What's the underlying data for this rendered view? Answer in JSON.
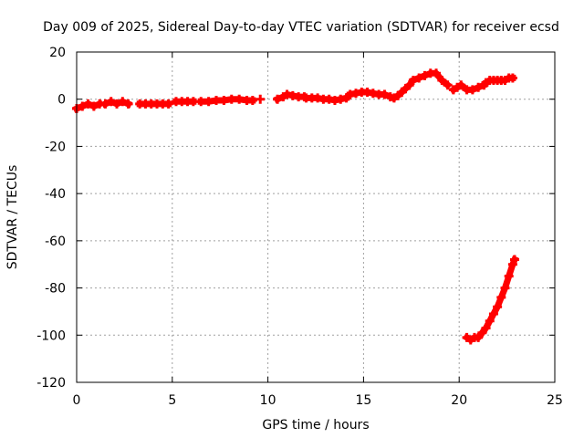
{
  "chart_data": {
    "type": "scatter",
    "title": "Day 009 of 2025, Sidereal Day-to-day VTEC variation (SDTVAR) for receiver ecsd",
    "xlabel": "GPS time / hours",
    "ylabel": "SDTVAR / TECUs",
    "xlim": [
      0,
      25
    ],
    "ylim": [
      -120,
      20
    ],
    "xticks": [
      0,
      5,
      10,
      15,
      20,
      25
    ],
    "yticks": [
      -120,
      -100,
      -80,
      -60,
      -40,
      -20,
      0,
      20
    ],
    "grid": true,
    "legend": "none",
    "marker_color": "#ff0000",
    "series": [
      {
        "name": "main",
        "segments": [
          {
            "x": [
              0.0,
              0.3,
              0.6,
              0.9,
              1.2
            ],
            "y": [
              -4,
              -3,
              -2,
              -3,
              -2
            ]
          },
          {
            "x": [
              1.5,
              1.8,
              2.1,
              2.4,
              2.7
            ],
            "y": [
              -2,
              -1,
              -2,
              -1,
              -2
            ]
          },
          {
            "x": [
              3.3,
              3.6,
              3.9
            ],
            "y": [
              -2,
              -2,
              -2
            ]
          },
          {
            "x": [
              4.2,
              4.5,
              4.8
            ],
            "y": [
              -2,
              -2,
              -2
            ]
          },
          {
            "x": [
              5.2,
              5.5,
              5.8,
              6.1
            ],
            "y": [
              -1,
              -1,
              -1,
              -1
            ]
          },
          {
            "x": [
              6.5,
              6.9,
              7.3,
              7.7,
              8.1,
              8.5,
              8.9,
              9.2
            ],
            "y": [
              -1,
              -1,
              -0.5,
              -0.5,
              0,
              0,
              -0.5,
              -0.5
            ]
          },
          {
            "x": [
              9.6
            ],
            "y": [
              0
            ]
          },
          {
            "x": [
              10.5,
              10.8,
              11.0,
              11.3,
              11.6,
              11.9
            ],
            "y": [
              0,
              1,
              2,
              1.5,
              1,
              1
            ]
          },
          {
            "x": [
              12.0,
              12.3,
              12.6,
              12.9,
              13.2,
              13.5,
              13.8,
              14.1
            ],
            "y": [
              0.5,
              0.5,
              0.5,
              0,
              0,
              -0.5,
              0,
              0.5
            ]
          },
          {
            "x": [
              14.3,
              14.6,
              14.9,
              15.2,
              15.5,
              15.8,
              16.1,
              16.4
            ],
            "y": [
              2,
              2.5,
              3,
              3,
              2.5,
              2,
              2,
              1
            ]
          },
          {
            "x": [
              16.6,
              16.8,
              17.0,
              17.2,
              17.4
            ],
            "y": [
              0.5,
              1.5,
              3,
              4.5,
              6
            ]
          },
          {
            "x": [
              17.6,
              17.9,
              18.2,
              18.5,
              18.8,
              19.1,
              19.4
            ],
            "y": [
              8,
              9,
              10,
              11,
              11,
              8,
              6
            ]
          },
          {
            "x": [
              19.7,
              19.9,
              20.1,
              20.4,
              20.7,
              21.0,
              21.3
            ],
            "y": [
              4,
              5,
              6,
              4,
              4,
              5,
              6
            ]
          },
          {
            "x": [
              21.4,
              21.6,
              21.8,
              22.0,
              22.2,
              22.4,
              22.6,
              22.8
            ],
            "y": [
              7,
              8,
              8,
              8,
              8,
              8,
              9,
              9
            ]
          }
        ]
      },
      {
        "name": "excursion",
        "segments": [
          {
            "x": [
              20.4,
              20.6,
              20.8,
              21.0,
              21.2,
              21.4,
              21.6,
              21.8,
              22.0,
              22.2,
              22.4,
              22.6,
              22.8,
              22.9
            ],
            "y": [
              -101,
              -102,
              -101,
              -101,
              -99,
              -97,
              -94,
              -91,
              -88,
              -84,
              -80,
              -75,
              -70,
              -68
            ]
          }
        ]
      }
    ]
  }
}
